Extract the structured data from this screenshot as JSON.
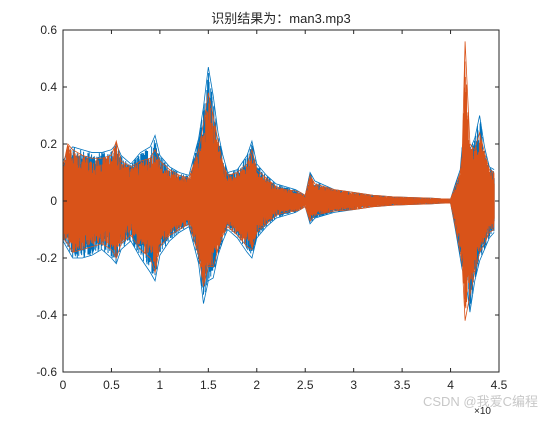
{
  "chart_data": {
    "type": "line",
    "title": "识别结果为：man3.mp3",
    "xlabel": "",
    "ylabel": "",
    "xlim": [
      0,
      4.5
    ],
    "ylim": [
      -0.6,
      0.6
    ],
    "x_scale_exponent": "×10",
    "x_ticks": [
      "0",
      "0.5",
      "1",
      "1.5",
      "2",
      "2.5",
      "3",
      "3.5",
      "4",
      "4.5"
    ],
    "y_ticks": [
      "0.6",
      "0.4",
      "0.2",
      "0",
      "-0.2",
      "-0.4",
      "-0.6"
    ],
    "grid": false,
    "legend": "none",
    "series": [
      {
        "color": "#0072BD",
        "envelope": {
          "x": [
            0,
            0.05,
            0.1,
            0.2,
            0.3,
            0.4,
            0.5,
            0.55,
            0.6,
            0.7,
            0.8,
            0.9,
            0.95,
            1.0,
            1.1,
            1.2,
            1.3,
            1.4,
            1.45,
            1.5,
            1.55,
            1.6,
            1.65,
            1.7,
            1.8,
            1.9,
            1.95,
            2.0,
            2.1,
            2.2,
            2.3,
            2.4,
            2.45,
            2.5,
            2.55,
            2.6,
            2.8,
            3.0,
            3.2,
            3.4,
            3.6,
            3.8,
            3.9,
            4.0,
            4.05,
            4.1,
            4.12,
            4.15,
            4.2,
            4.25,
            4.3,
            4.35,
            4.4,
            4.45
          ],
          "upper": [
            0.14,
            0.17,
            0.19,
            0.18,
            0.17,
            0.17,
            0.18,
            0.2,
            0.16,
            0.13,
            0.17,
            0.19,
            0.23,
            0.16,
            0.12,
            0.1,
            0.09,
            0.22,
            0.33,
            0.47,
            0.37,
            0.24,
            0.16,
            0.1,
            0.11,
            0.16,
            0.21,
            0.13,
            0.09,
            0.06,
            0.05,
            0.04,
            0.03,
            0.02,
            0.1,
            0.07,
            0.04,
            0.03,
            0.02,
            0.015,
            0.012,
            0.01,
            0.008,
            0.007,
            0.06,
            0.11,
            0.19,
            0.16,
            0.18,
            0.22,
            0.3,
            0.19,
            0.12,
            0.11
          ],
          "lower": [
            -0.14,
            -0.17,
            -0.2,
            -0.2,
            -0.19,
            -0.17,
            -0.2,
            -0.22,
            -0.17,
            -0.14,
            -0.2,
            -0.25,
            -0.28,
            -0.19,
            -0.14,
            -0.11,
            -0.09,
            -0.22,
            -0.36,
            -0.28,
            -0.27,
            -0.19,
            -0.14,
            -0.1,
            -0.13,
            -0.18,
            -0.2,
            -0.13,
            -0.09,
            -0.06,
            -0.05,
            -0.04,
            -0.03,
            -0.02,
            -0.08,
            -0.06,
            -0.04,
            -0.03,
            -0.02,
            -0.015,
            -0.012,
            -0.01,
            -0.008,
            -0.007,
            -0.1,
            -0.2,
            -0.24,
            -0.26,
            -0.39,
            -0.28,
            -0.21,
            -0.17,
            -0.13,
            -0.11
          ]
        }
      },
      {
        "color": "#D95319",
        "envelope": {
          "x": [
            0,
            0.05,
            0.1,
            0.2,
            0.3,
            0.4,
            0.5,
            0.55,
            0.6,
            0.7,
            0.8,
            0.9,
            0.95,
            1.0,
            1.1,
            1.2,
            1.3,
            1.4,
            1.45,
            1.5,
            1.55,
            1.6,
            1.65,
            1.7,
            1.8,
            1.9,
            1.95,
            2.0,
            2.1,
            2.2,
            2.3,
            2.4,
            2.45,
            2.5,
            2.55,
            2.6,
            2.8,
            3.0,
            3.2,
            3.4,
            3.6,
            3.8,
            3.9,
            4.0,
            4.05,
            4.1,
            4.12,
            4.15,
            4.2,
            4.25,
            4.3,
            4.35,
            4.4,
            4.45
          ],
          "upper": [
            0.12,
            0.2,
            0.18,
            0.16,
            0.15,
            0.15,
            0.16,
            0.21,
            0.14,
            0.12,
            0.14,
            0.15,
            0.18,
            0.14,
            0.11,
            0.09,
            0.08,
            0.18,
            0.27,
            0.38,
            0.3,
            0.21,
            0.13,
            0.09,
            0.1,
            0.13,
            0.18,
            0.11,
            0.08,
            0.05,
            0.04,
            0.035,
            0.03,
            0.02,
            0.09,
            0.06,
            0.04,
            0.03,
            0.02,
            0.015,
            0.012,
            0.01,
            0.008,
            0.007,
            0.05,
            0.1,
            0.16,
            0.56,
            0.2,
            0.18,
            0.24,
            0.17,
            0.11,
            0.1
          ],
          "lower": [
            -0.13,
            -0.15,
            -0.18,
            -0.17,
            -0.16,
            -0.15,
            -0.17,
            -0.2,
            -0.15,
            -0.12,
            -0.17,
            -0.2,
            -0.25,
            -0.16,
            -0.12,
            -0.1,
            -0.08,
            -0.19,
            -0.3,
            -0.23,
            -0.23,
            -0.17,
            -0.12,
            -0.09,
            -0.12,
            -0.16,
            -0.17,
            -0.11,
            -0.08,
            -0.05,
            -0.04,
            -0.035,
            -0.03,
            -0.02,
            -0.07,
            -0.05,
            -0.035,
            -0.03,
            -0.02,
            -0.015,
            -0.012,
            -0.01,
            -0.008,
            -0.007,
            -0.09,
            -0.18,
            -0.22,
            -0.42,
            -0.33,
            -0.25,
            -0.18,
            -0.15,
            -0.11,
            -0.1
          ]
        }
      }
    ]
  },
  "watermark": {
    "text": "CSDN @我爱C编程",
    "color": "#c8c8c8"
  }
}
